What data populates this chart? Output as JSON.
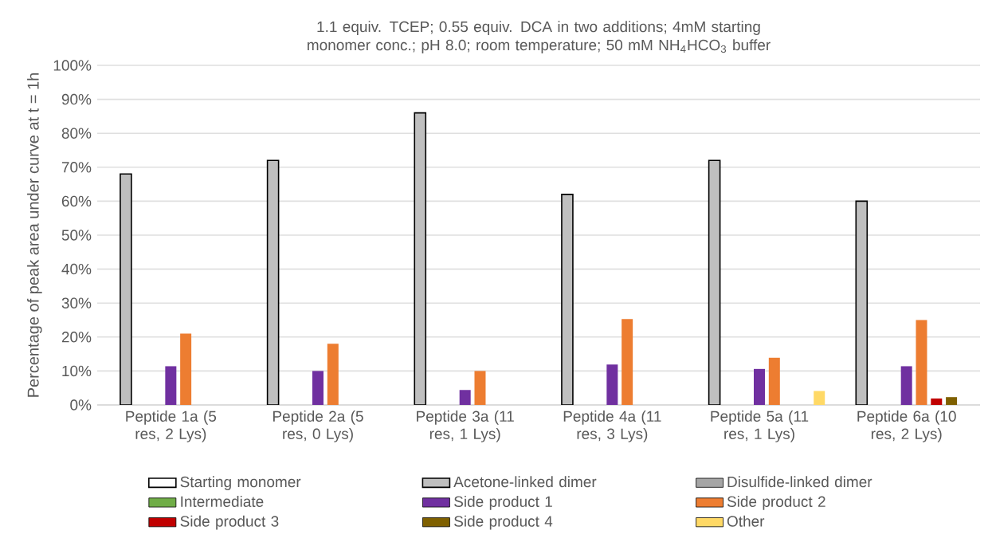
{
  "chart_data": {
    "type": "bar",
    "title": "1.1 equiv. TCEP; 0.55 equiv. DCA in two additions; 4mM starting monomer conc.; pH 8.0; room temperature; 50 mM NH$_{4}$HCO$_{3}$ buffer",
    "ylabel": "Percentage of peak area under curve at t = 1h",
    "categories": [
      "Peptide 1a (5 res, 2 Lys)",
      "Peptide 2a (5 res, 0 Lys)",
      "Peptide 3a (11 res, 1 Lys)",
      "Peptide 4a (11 res, 3 Lys)",
      "Peptide 5a (11 res, 1 Lys)",
      "Peptide 6a (10 res, 2 Lys)"
    ],
    "series": [
      {
        "name": "Starting monomer",
        "color": "#ffffff",
        "values": [
          null,
          null,
          null,
          null,
          null,
          null
        ]
      },
      {
        "name": "Acetone-linked dimer",
        "color": "#bfbfbf",
        "values": [
          68,
          72,
          86,
          62,
          72,
          60
        ]
      },
      {
        "name": "Disulfide-linked dimer",
        "color": "#a5a5a5",
        "values": [
          null,
          null,
          null,
          null,
          null,
          null
        ]
      },
      {
        "name": "Intermediate",
        "color": "#70ad47",
        "values": [
          null,
          null,
          null,
          null,
          null,
          null
        ]
      },
      {
        "name": "Side product 1",
        "color": "#7030a0",
        "values": [
          11.4,
          10,
          4.4,
          11.9,
          10.6,
          11.4
        ]
      },
      {
        "name": "Side product 2",
        "color": "#ed7d31",
        "values": [
          21,
          18,
          10,
          25.3,
          13.9,
          25
        ]
      },
      {
        "name": "Side product 3",
        "color": "#c00000",
        "values": [
          null,
          null,
          null,
          null,
          null,
          1.9
        ]
      },
      {
        "name": "Side product 4",
        "color": "#7f6000",
        "values": [
          null,
          null,
          null,
          null,
          null,
          2.3
        ]
      },
      {
        "name": "Other",
        "color": "#ffd966",
        "values": [
          null,
          null,
          null,
          null,
          4.1,
          null
        ]
      }
    ],
    "ylim": [
      0,
      100
    ],
    "yticks": [
      {
        "value": 0,
        "label": "0%"
      },
      {
        "value": 10,
        "label": "10%"
      },
      {
        "value": 20,
        "label": "20%"
      },
      {
        "value": 30,
        "label": "30%"
      },
      {
        "value": 40,
        "label": "40%"
      },
      {
        "value": 50,
        "label": "50%"
      },
      {
        "value": 60,
        "label": "60%"
      },
      {
        "value": 70,
        "label": "70%"
      },
      {
        "value": 80,
        "label": "80%"
      },
      {
        "value": 90,
        "label": "90%"
      },
      {
        "value": 100,
        "label": "100%"
      }
    ],
    "grid": "y",
    "legend": "bottom"
  }
}
